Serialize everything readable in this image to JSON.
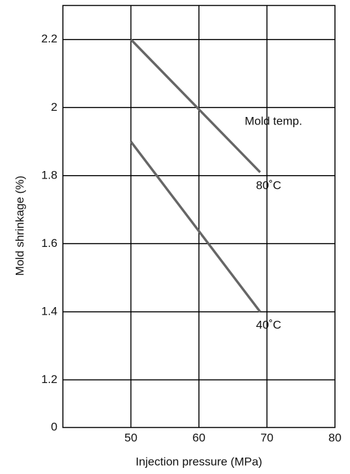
{
  "chart_data": {
    "type": "line",
    "y_label": "Mold shrinkage (%)",
    "x_label": "Injection pressure (MPa)",
    "legend_title": "Mold temp.",
    "x": [
      50,
      69
    ],
    "series": [
      {
        "name": "80˚C",
        "color": "#666666",
        "values": [
          2.2,
          1.81
        ]
      },
      {
        "name": "40˚C",
        "color": "#666666",
        "values": [
          1.9,
          1.4
        ]
      }
    ],
    "xlim": [
      40,
      80
    ],
    "xticks": [
      50,
      60,
      70,
      80
    ],
    "ylim": [
      1.06,
      2.3
    ],
    "yticks": [
      0,
      1.2,
      1.4,
      1.6,
      1.8,
      2.0,
      2.2
    ],
    "y_axis_break": true,
    "grid": true
  }
}
